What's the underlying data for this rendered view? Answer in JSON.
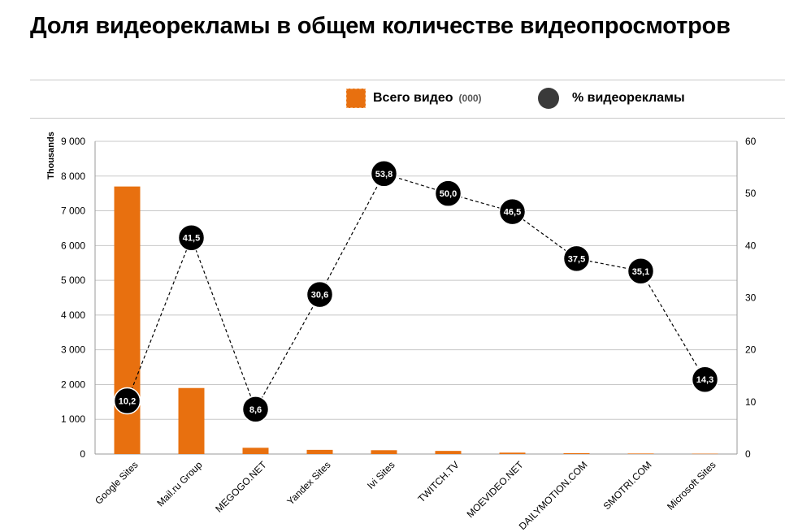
{
  "header": {
    "title": "Доля видеорекламы в общем количестве видеопросмотров"
  },
  "legend": {
    "bars_label": "Всего видео",
    "bars_unit": "(000)",
    "line_label": "% видеорекламы"
  },
  "colors": {
    "bar": "#e8700f",
    "marker": "#000000",
    "grid": "#c8c8c8",
    "line": "#000000"
  },
  "chart_data": {
    "type": "bar",
    "categories": [
      "Google Sites",
      "Mail.ru Group",
      "MEGOGO.NET",
      "Yandex Sites",
      "Ivi Sites",
      "TWITCH.TV",
      "MOEVIDEO.NET",
      "DAILYMOTION.COM",
      "SMOTRI.COM",
      "Microsoft Sites"
    ],
    "ylabel": "Thousands",
    "ylim": [
      0,
      9000
    ],
    "y_ticks": [
      0,
      1000,
      2000,
      3000,
      4000,
      5000,
      6000,
      7000,
      8000,
      9000
    ],
    "y_tick_labels": [
      "0",
      "1 000",
      "2 000",
      "3 000",
      "4 000",
      "5 000",
      "6 000",
      "7 000",
      "8 000",
      "9 000"
    ],
    "y2lim": [
      0,
      60
    ],
    "y2_ticks": [
      0,
      10,
      20,
      30,
      40,
      50,
      60
    ],
    "y2_tick_labels": [
      "0",
      "10",
      "20",
      "30",
      "40",
      "50",
      "60"
    ],
    "grid": true,
    "series": [
      {
        "name": "Всего видео (000)",
        "type": "bar",
        "axis": "left",
        "values": [
          7700,
          1900,
          180,
          120,
          110,
          90,
          40,
          25,
          15,
          10
        ]
      },
      {
        "name": "% видеорекламы",
        "type": "line",
        "axis": "right",
        "values": [
          10.2,
          41.5,
          8.6,
          30.6,
          53.8,
          50.0,
          46.5,
          37.5,
          35.1,
          14.3
        ],
        "labels": [
          "10,2",
          "41,5",
          "8,6",
          "30,6",
          "53,8",
          "50,0",
          "46,5",
          "37,5",
          "35,1",
          "14,3"
        ]
      }
    ]
  }
}
